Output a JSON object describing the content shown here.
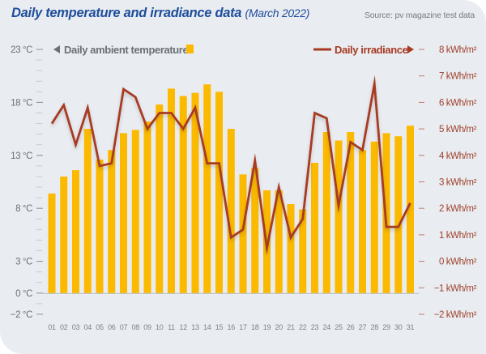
{
  "chart_data": {
    "type": "bar+line",
    "title": "Daily temperature and irradiance data",
    "subtitle": "(March 2022)",
    "source": "Source: pv magazine test data",
    "categories": [
      "01",
      "02",
      "03",
      "04",
      "05",
      "06",
      "07",
      "08",
      "09",
      "10",
      "11",
      "12",
      "13",
      "14",
      "15",
      "16",
      "17",
      "18",
      "19",
      "20",
      "21",
      "22",
      "23",
      "24",
      "25",
      "26",
      "27",
      "28",
      "29",
      "30",
      "31"
    ],
    "series": [
      {
        "name": "Daily ambient temperature",
        "type": "bar",
        "axis": "left",
        "unit": "°C",
        "color": "#fbb900",
        "values": [
          9.4,
          11.0,
          11.6,
          15.5,
          12.6,
          13.5,
          15.1,
          15.4,
          16.2,
          17.8,
          19.3,
          18.6,
          18.9,
          19.7,
          19.0,
          15.5,
          11.2,
          11.8,
          9.7,
          9.7,
          8.4,
          7.9,
          12.3,
          15.2,
          14.4,
          15.2,
          13.5,
          14.3,
          15.1,
          14.8,
          15.8
        ]
      },
      {
        "name": "Daily irradiance",
        "type": "line",
        "axis": "right",
        "unit": "kWh/m²",
        "color": "#a83a23",
        "values": [
          5.2,
          5.9,
          4.4,
          5.8,
          3.6,
          3.7,
          6.5,
          6.2,
          5.0,
          5.6,
          5.6,
          5.0,
          5.8,
          3.7,
          3.7,
          0.9,
          1.2,
          3.8,
          0.5,
          2.8,
          0.9,
          1.6,
          5.6,
          5.4,
          2.1,
          4.5,
          4.2,
          6.7,
          1.3,
          1.3,
          2.2
        ]
      }
    ],
    "left_axis": {
      "range": [
        -2,
        23
      ],
      "tick_labels": [
        {
          "value": 23,
          "label": "23 °C"
        },
        {
          "value": 18,
          "label": "18 °C"
        },
        {
          "value": 13,
          "label": "13 °C"
        },
        {
          "value": 8,
          "label": "8 °C"
        },
        {
          "value": 3,
          "label": "3 °C"
        },
        {
          "value": 0,
          "label": "0 °C"
        },
        {
          "value": -2,
          "label": "−2 °C"
        }
      ],
      "minor_step": 1
    },
    "right_axis": {
      "range": [
        -2,
        8
      ],
      "tick_labels": [
        {
          "value": 8,
          "label": "8 kWh/m²"
        },
        {
          "value": 7,
          "label": "7 kWh/m²"
        },
        {
          "value": 6,
          "label": "6 kWh/m²"
        },
        {
          "value": 5,
          "label": "5 kWh/m²"
        },
        {
          "value": 4,
          "label": "4 kWh/m²"
        },
        {
          "value": 3,
          "label": "3 kWh/m²"
        },
        {
          "value": 2,
          "label": "2 kWh/m²"
        },
        {
          "value": 1,
          "label": "1 kWh/m²"
        },
        {
          "value": 0,
          "label": "0 kWh/m²"
        },
        {
          "value": -1,
          "label": "−1 kWh/m²"
        },
        {
          "value": -2,
          "label": "−2 kWh/m²"
        }
      ]
    },
    "legend": [
      {
        "label": "Daily ambient temperature",
        "position": "top-left",
        "marker": "square",
        "arrow": "left"
      },
      {
        "label": "Daily irradiance",
        "position": "top-right",
        "marker": "line",
        "arrow": "right"
      }
    ],
    "grid": false
  },
  "colors": {
    "background": "#e9ecf0",
    "title": "#1f4e9c",
    "bar": "#fbb900",
    "line": "#a83a23",
    "left_axis_text": "#6b7077",
    "right_axis_text": "#a0402c"
  }
}
